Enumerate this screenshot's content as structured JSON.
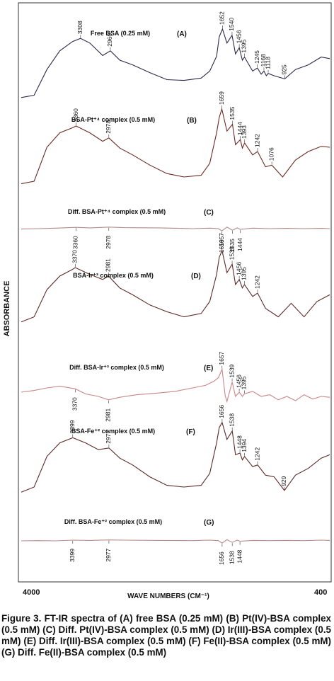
{
  "chart_data": {
    "type": "line",
    "title": "",
    "xlabel": "WAVE NUMBERS (CM⁻¹)",
    "ylabel": "ABSORBANCE",
    "xlim": [
      4000,
      400
    ],
    "x_axis_reversed": true,
    "xtick_labels": [
      "4000",
      "400"
    ],
    "grid": false,
    "series": [
      {
        "name": "Free BSA (0.25 mM)",
        "panel": "(A)",
        "color": "#2c2a4a",
        "peak_labels": [
          "3308",
          "2960",
          "1652",
          "1540",
          "1456",
          "1395",
          "1245",
          "1168",
          "1118",
          "925"
        ],
        "x": [
          4000,
          3850,
          3700,
          3550,
          3400,
          3308,
          3200,
          3050,
          2960,
          2850,
          2700,
          2500,
          2300,
          2100,
          1900,
          1800,
          1720,
          1690,
          1652,
          1600,
          1540,
          1500,
          1456,
          1420,
          1395,
          1300,
          1245,
          1200,
          1168,
          1140,
          1118,
          1050,
          925,
          800,
          650,
          500,
          400
        ],
        "y": [
          0.02,
          0.05,
          0.38,
          0.62,
          0.74,
          0.78,
          0.72,
          0.56,
          0.62,
          0.5,
          0.44,
          0.34,
          0.25,
          0.24,
          0.27,
          0.36,
          0.55,
          0.8,
          0.9,
          0.72,
          0.82,
          0.58,
          0.66,
          0.5,
          0.54,
          0.36,
          0.4,
          0.32,
          0.36,
          0.3,
          0.33,
          0.3,
          0.26,
          0.38,
          0.44,
          0.54,
          0.52
        ]
      },
      {
        "name": "BSA-Pt⁺⁴ complex (0.5 mM)",
        "panel": "(B)",
        "color": "#6a2a24",
        "peak_labels": [
          "3360",
          "2978",
          "1659",
          "1535",
          "1444",
          "1393",
          "1242",
          "1076"
        ],
        "x": [
          4000,
          3850,
          3700,
          3550,
          3400,
          3360,
          3200,
          3050,
          2978,
          2850,
          2700,
          2500,
          2300,
          2100,
          1900,
          1800,
          1720,
          1690,
          1659,
          1600,
          1535,
          1500,
          1444,
          1420,
          1393,
          1300,
          1242,
          1150,
          1076,
          950,
          800,
          650,
          500,
          400
        ],
        "y": [
          0.02,
          0.05,
          0.45,
          0.62,
          0.68,
          0.7,
          0.62,
          0.52,
          0.56,
          0.44,
          0.36,
          0.24,
          0.14,
          0.1,
          0.12,
          0.26,
          0.62,
          0.8,
          0.9,
          0.64,
          0.72,
          0.48,
          0.54,
          0.44,
          0.5,
          0.36,
          0.4,
          0.22,
          0.24,
          0.1,
          0.3,
          0.4,
          0.46,
          0.45
        ]
      },
      {
        "name": "Diff. BSA-Pt⁺⁴ complex (0.5 mM)",
        "panel": "(C)",
        "color": "#b38a8a",
        "peak_labels": [
          "3360",
          "2978",
          "1659",
          "1535",
          "1444"
        ],
        "x": [
          4000,
          3800,
          3600,
          3360,
          3200,
          2978,
          2800,
          2400,
          2000,
          1800,
          1700,
          1659,
          1600,
          1535,
          1480,
          1444,
          1300,
          1100,
          900,
          700,
          500,
          400
        ],
        "y": [
          0.48,
          0.5,
          0.54,
          0.6,
          0.56,
          0.62,
          0.58,
          0.56,
          0.5,
          0.54,
          0.5,
          0.32,
          0.62,
          0.38,
          0.56,
          0.44,
          0.54,
          0.5,
          0.52,
          0.5,
          0.52,
          0.5
        ]
      },
      {
        "name": "BSA-Ir⁺³ complex (0.5 mM)",
        "panel": "(D)",
        "color": "#5c2a28",
        "peak_labels": [
          "3370",
          "2981",
          "1657",
          "1539",
          "1456",
          "1395",
          "1242"
        ],
        "x": [
          4000,
          3850,
          3700,
          3550,
          3400,
          3370,
          3200,
          3050,
          2981,
          2850,
          2700,
          2500,
          2300,
          2100,
          1900,
          1800,
          1720,
          1690,
          1657,
          1600,
          1539,
          1500,
          1456,
          1420,
          1395,
          1300,
          1242,
          1150,
          1000,
          850,
          700,
          550,
          400
        ],
        "y": [
          0.06,
          0.12,
          0.44,
          0.6,
          0.68,
          0.7,
          0.62,
          0.56,
          0.6,
          0.46,
          0.38,
          0.26,
          0.18,
          0.12,
          0.16,
          0.3,
          0.62,
          0.82,
          0.9,
          0.64,
          0.74,
          0.5,
          0.56,
          0.46,
          0.5,
          0.36,
          0.4,
          0.22,
          0.12,
          0.28,
          0.12,
          0.3,
          0.38
        ]
      },
      {
        "name": "Diff. BSA-Ir⁺³ complex (0.5 mM)",
        "panel": "(E)",
        "color": "#c98686",
        "peak_labels": [
          "3370",
          "2981",
          "1657",
          "1539",
          "1456",
          "1395"
        ],
        "x": [
          4000,
          3850,
          3700,
          3550,
          3370,
          3250,
          3100,
          2981,
          2850,
          2650,
          2400,
          2200,
          2000,
          1850,
          1750,
          1700,
          1657,
          1620,
          1600,
          1539,
          1500,
          1456,
          1420,
          1395,
          1300,
          1200,
          1100,
          1000,
          900,
          800,
          700,
          600,
          500,
          400
        ],
        "y": [
          0.4,
          0.44,
          0.5,
          0.54,
          0.48,
          0.36,
          0.3,
          0.22,
          0.28,
          0.34,
          0.38,
          0.42,
          0.5,
          0.56,
          0.66,
          0.74,
          0.94,
          0.32,
          0.18,
          0.64,
          0.3,
          0.4,
          0.3,
          0.36,
          0.42,
          0.3,
          0.34,
          0.22,
          0.3,
          0.2,
          0.34,
          0.24,
          0.3,
          0.28
        ]
      },
      {
        "name": "BSA-Fe⁺² complex (0.5 mM)",
        "panel": "(F)",
        "color": "#5a2a26",
        "peak_labels": [
          "3399",
          "2977",
          "1656",
          "1538",
          "1448",
          "1394",
          "1242",
          "929"
        ],
        "x": [
          4000,
          3850,
          3700,
          3550,
          3399,
          3250,
          3100,
          2977,
          2850,
          2700,
          2500,
          2300,
          2100,
          1900,
          1800,
          1720,
          1690,
          1656,
          1600,
          1538,
          1500,
          1448,
          1420,
          1394,
          1300,
          1242,
          1150,
          1050,
          929,
          800,
          650,
          500,
          400
        ],
        "y": [
          0.04,
          0.1,
          0.46,
          0.62,
          0.68,
          0.62,
          0.54,
          0.56,
          0.44,
          0.36,
          0.22,
          0.12,
          0.1,
          0.12,
          0.26,
          0.62,
          0.8,
          0.86,
          0.66,
          0.76,
          0.48,
          0.5,
          0.42,
          0.46,
          0.34,
          0.36,
          0.24,
          0.22,
          0.06,
          0.24,
          0.32,
          0.44,
          0.48
        ]
      },
      {
        "name": "Diff. BSA-Fe⁺² complex (0.5 mM)",
        "panel": "(G)",
        "color": "#b88a8a",
        "peak_labels": [
          "3399",
          "2977",
          "1656",
          "1538",
          "1448"
        ],
        "x": [
          4000,
          3800,
          3600,
          3399,
          3200,
          2977,
          2800,
          2400,
          2000,
          1800,
          1700,
          1656,
          1600,
          1538,
          1480,
          1448,
          1300,
          1100,
          900,
          700,
          500,
          400
        ],
        "y": [
          0.5,
          0.52,
          0.5,
          0.56,
          0.54,
          0.58,
          0.56,
          0.54,
          0.52,
          0.56,
          0.52,
          0.3,
          0.6,
          0.36,
          0.56,
          0.46,
          0.54,
          0.52,
          0.54,
          0.52,
          0.56,
          0.54
        ]
      }
    ]
  },
  "caption": "Figure 3. FT-IR spectra of (A) free BSA (0.25 mM) (B) Pt(IV)-BSA complex (0.5 mM) (C) Diff. Pt(IV)-BSA complex (0.5 mM) (D) Ir(III)-BSA complex (0.5 mM) (E) Diff. Ir(III)-BSA complex (0.5 mM) (F) Fe(II)-BSA complex (0.5 mM) (G) Diff. Fe(II)-BSA complex (0.5 mM)"
}
